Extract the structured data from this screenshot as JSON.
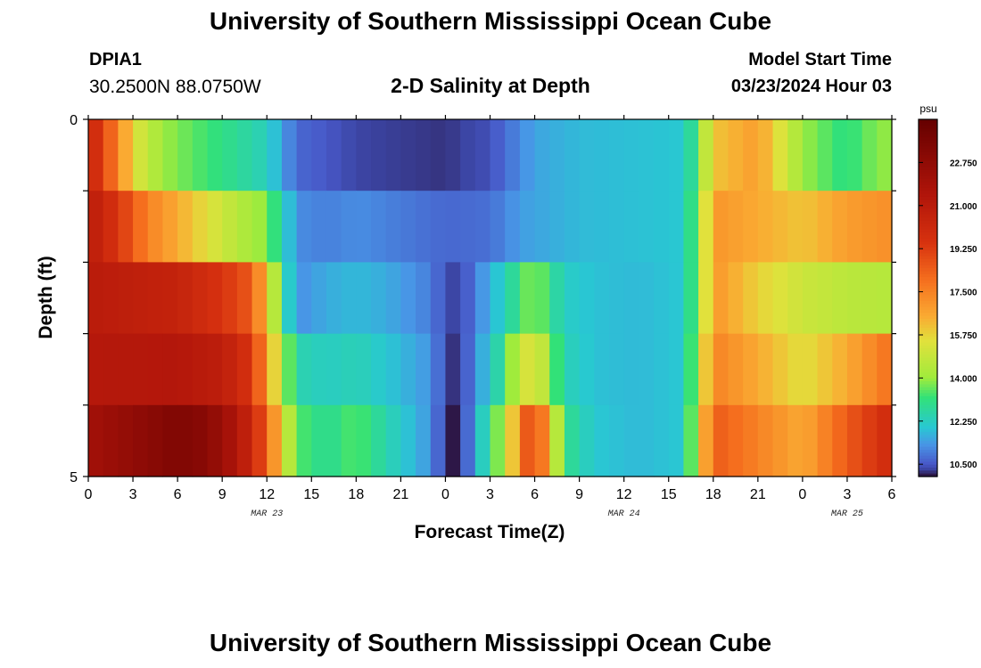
{
  "page": {
    "title_top": "University of Southern Mississippi Ocean Cube",
    "title_bottom": "University of Southern Mississippi Ocean Cube",
    "station_id": "DPIA1",
    "station_coords": "30.2500N  88.0750W",
    "subtitle": "2-D Salinity at Depth",
    "model_start_label": "Model Start Time",
    "model_start_value": "03/23/2024 Hour 03"
  },
  "chart_data": {
    "type": "heatmap",
    "xlabel": "Forecast Time(Z)",
    "ylabel": "Depth (ft)",
    "x_ticks": [
      "0",
      "3",
      "6",
      "9",
      "12",
      "15",
      "18",
      "21",
      "0",
      "3",
      "6",
      "9",
      "12",
      "15",
      "18",
      "21",
      "0",
      "3",
      "6"
    ],
    "date_labels": [
      {
        "label": "MAR 23",
        "hour": 12
      },
      {
        "label": "MAR 24",
        "hour": 36
      },
      {
        "label": "MAR 25",
        "hour": 51
      }
    ],
    "x_range_hours": [
      0,
      54
    ],
    "y_ticks": [
      "0",
      "5"
    ],
    "y_range_ft": [
      0,
      5
    ],
    "depth_levels": 5,
    "time_step_hours": 1,
    "colorbar": {
      "unit": "psu",
      "ticks": [
        "22.750",
        "21.000",
        "19.250",
        "17.500",
        "15.750",
        "14.000",
        "12.250",
        "10.500"
      ],
      "min": 10.0,
      "max": 24.5
    },
    "salinity_profiles": [
      {
        "depth_band": "0-1 ft",
        "keys": [
          [
            0,
            20.5
          ],
          [
            1,
            19
          ],
          [
            2,
            17.5
          ],
          [
            3,
            15.5
          ],
          [
            5,
            14
          ],
          [
            7,
            13.5
          ],
          [
            10,
            12.8
          ],
          [
            12,
            12.3
          ],
          [
            13,
            11.5
          ],
          [
            14,
            10.7
          ],
          [
            18,
            10.3
          ],
          [
            24,
            10.2
          ],
          [
            27,
            10.4
          ],
          [
            30,
            11.5
          ],
          [
            33,
            11.8
          ],
          [
            37,
            11.9
          ],
          [
            40,
            12.0
          ],
          [
            41,
            13.5
          ],
          [
            42,
            16
          ],
          [
            45,
            16.8
          ],
          [
            48,
            14
          ],
          [
            51,
            13
          ],
          [
            52,
            13.5
          ],
          [
            54,
            14
          ]
        ]
      },
      {
        "depth_band": "1-2 ft",
        "keys": [
          [
            0,
            21
          ],
          [
            2,
            19.5
          ],
          [
            4,
            17.5
          ],
          [
            6,
            16.5
          ],
          [
            8,
            15.5
          ],
          [
            10,
            14.5
          ],
          [
            12,
            13.8
          ],
          [
            13,
            12.5
          ],
          [
            14,
            11.2
          ],
          [
            16,
            11.0
          ],
          [
            18,
            11.2
          ],
          [
            24,
            10.7
          ],
          [
            27,
            10.8
          ],
          [
            29,
            11.4
          ],
          [
            33,
            11.8
          ],
          [
            37,
            11.9
          ],
          [
            40,
            12.0
          ],
          [
            41,
            14
          ],
          [
            42,
            17
          ],
          [
            45,
            16.5
          ],
          [
            48,
            16
          ],
          [
            51,
            16.8
          ],
          [
            54,
            17.2
          ]
        ]
      },
      {
        "depth_band": "2-3 ft",
        "keys": [
          [
            0,
            21
          ],
          [
            6,
            20.5
          ],
          [
            9,
            19.5
          ],
          [
            11,
            18.5
          ],
          [
            12,
            16
          ],
          [
            13,
            13
          ],
          [
            14,
            11.2
          ],
          [
            16,
            11.6
          ],
          [
            18,
            11.8
          ],
          [
            20,
            11.6
          ],
          [
            23,
            11.0
          ],
          [
            24,
            10.4
          ],
          [
            25,
            10.2
          ],
          [
            26,
            11.0
          ],
          [
            28,
            12.3
          ],
          [
            29,
            13.2
          ],
          [
            30,
            14
          ],
          [
            31,
            13
          ],
          [
            32,
            12.2
          ],
          [
            34,
            11.9
          ],
          [
            37,
            11.8
          ],
          [
            40,
            12.0
          ],
          [
            41,
            14
          ],
          [
            42,
            17
          ],
          [
            45,
            15.8
          ],
          [
            48,
            15
          ],
          [
            51,
            14.6
          ],
          [
            54,
            14.5
          ]
        ]
      },
      {
        "depth_band": "3-4 ft",
        "keys": [
          [
            0,
            21.2
          ],
          [
            6,
            21.3
          ],
          [
            9,
            20.8
          ],
          [
            11,
            19.5
          ],
          [
            12,
            17
          ],
          [
            13,
            14.5
          ],
          [
            14,
            12.5
          ],
          [
            16,
            12.2
          ],
          [
            18,
            12.4
          ],
          [
            20,
            12.0
          ],
          [
            23,
            11.3
          ],
          [
            24,
            10.3
          ],
          [
            25,
            10.1
          ],
          [
            26,
            11.2
          ],
          [
            28,
            13
          ],
          [
            29,
            15
          ],
          [
            30,
            15.5
          ],
          [
            31,
            14
          ],
          [
            32,
            12.4
          ],
          [
            34,
            11.9
          ],
          [
            37,
            11.8
          ],
          [
            40,
            12.0
          ],
          [
            41,
            14.5
          ],
          [
            42,
            17.5
          ],
          [
            45,
            16.5
          ],
          [
            48,
            15.5
          ],
          [
            51,
            16.5
          ],
          [
            54,
            18
          ]
        ]
      },
      {
        "depth_band": "4-5 ft",
        "keys": [
          [
            0,
            22
          ],
          [
            6,
            23.4
          ],
          [
            8,
            23
          ],
          [
            10,
            21.5
          ],
          [
            11,
            20
          ],
          [
            12,
            18.5
          ],
          [
            13,
            15.5
          ],
          [
            14,
            13.5
          ],
          [
            16,
            12.8
          ],
          [
            18,
            13.5
          ],
          [
            20,
            12.5
          ],
          [
            23,
            11.3
          ],
          [
            24,
            10.1
          ],
          [
            25,
            10.0
          ],
          [
            26,
            11.5
          ],
          [
            28,
            14.5
          ],
          [
            29,
            17.5
          ],
          [
            30,
            19.5
          ],
          [
            31,
            16
          ],
          [
            32,
            13
          ],
          [
            34,
            12.0
          ],
          [
            37,
            11.8
          ],
          [
            40,
            12.0
          ],
          [
            41,
            15
          ],
          [
            42,
            18.5
          ],
          [
            45,
            17.5
          ],
          [
            48,
            16.5
          ],
          [
            51,
            18.5
          ],
          [
            54,
            20
          ]
        ]
      }
    ]
  }
}
